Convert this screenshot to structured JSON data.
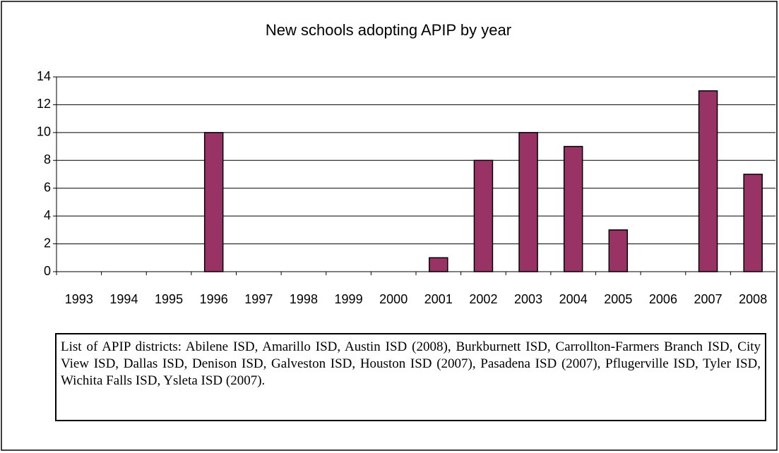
{
  "chart_data": {
    "type": "bar",
    "title": "New schools adopting APIP by year",
    "categories": [
      "1993",
      "1994",
      "1995",
      "1996",
      "1997",
      "1998",
      "1999",
      "2000",
      "2001",
      "2002",
      "2003",
      "2004",
      "2005",
      "2006",
      "2007",
      "2008"
    ],
    "values": [
      0,
      0,
      0,
      10,
      0,
      0,
      0,
      0,
      1,
      8,
      10,
      9,
      3,
      0,
      13,
      7
    ],
    "color": "#993366",
    "ylim": [
      0,
      14
    ],
    "yticks": [
      0,
      2,
      4,
      6,
      8,
      10,
      12,
      14
    ],
    "grid": true,
    "note": "List of APIP districts: Abilene ISD, Amarillo ISD, Austin ISD (2008), Burkburnett ISD, Carrollton-Farmers Branch ISD, City View ISD, Dallas ISD, Denison ISD, Galveston ISD, Houston ISD (2007), Pasadena ISD (2007), Pflugerville ISD, Tyler ISD, Wichita Falls ISD, Ysleta ISD (2007)."
  }
}
